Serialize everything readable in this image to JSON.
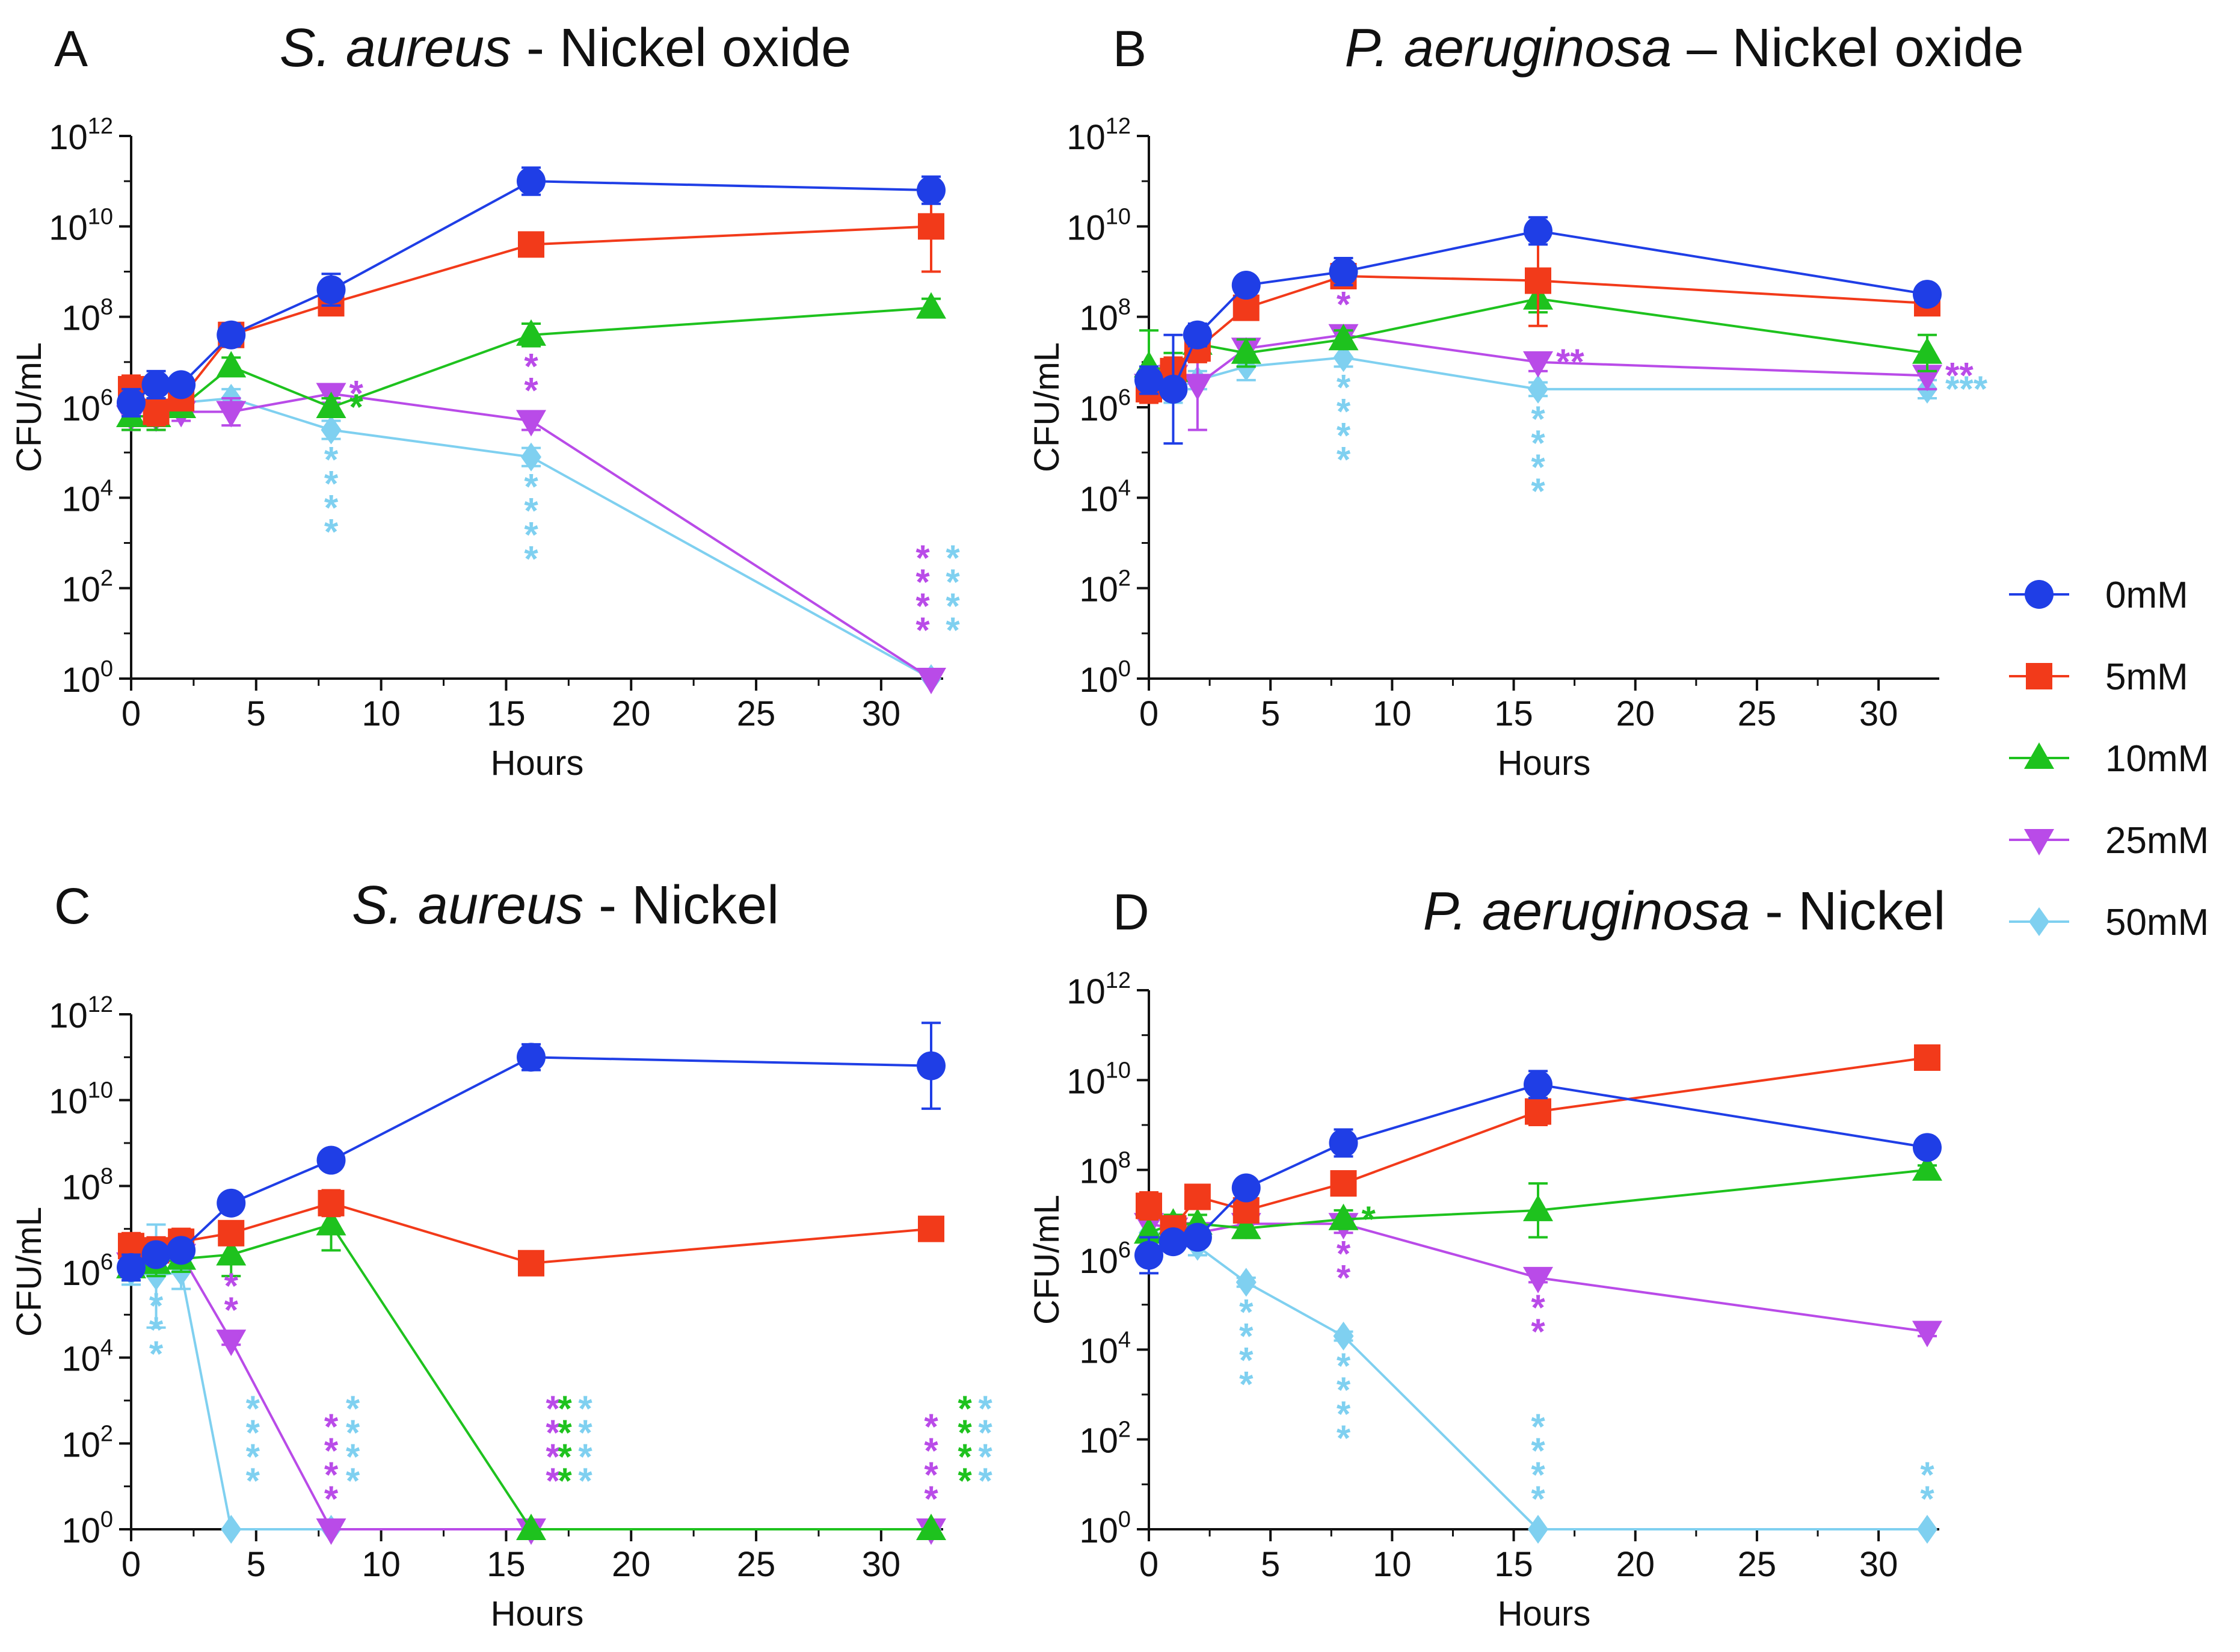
{
  "legend": [
    {
      "name": "0mM",
      "color": "#1f3ee6",
      "marker": "circle"
    },
    {
      "name": "5mM",
      "color": "#f23a1a",
      "marker": "square"
    },
    {
      "name": "10mM",
      "color": "#1ec21e",
      "marker": "triangle-up"
    },
    {
      "name": "25mM",
      "color": "#b94be8",
      "marker": "triangle-down"
    },
    {
      "name": "50mM",
      "color": "#7fd0f0",
      "marker": "diamond"
    }
  ],
  "chart_data": [
    {
      "type": "line",
      "panel": "A",
      "title": {
        "italic": "S. aureus",
        "rest": " - Nickel oxide"
      },
      "xlabel": "Hours",
      "ylabel": "CFU/mL",
      "yscale": "log",
      "xlim": [
        0,
        32
      ],
      "ylim_exponent": [
        0,
        12
      ],
      "xticks": [
        "0",
        "5",
        "10",
        "15",
        "20",
        "25",
        "30"
      ],
      "yticks": [
        {
          "base": "10",
          "exp": "0"
        },
        {
          "base": "10",
          "exp": "2"
        },
        {
          "base": "10",
          "exp": "4"
        },
        {
          "base": "10",
          "exp": "6"
        },
        {
          "base": "10",
          "exp": "8"
        },
        {
          "base": "10",
          "exp": "10"
        },
        {
          "base": "10",
          "exp": "12"
        }
      ],
      "x": [
        0,
        1,
        2,
        4,
        8,
        16,
        32
      ],
      "series": [
        {
          "name": "0mM",
          "log10": [
            6.1,
            6.5,
            6.5,
            7.6,
            8.6,
            11.0,
            10.8
          ],
          "err": [
            0.3,
            0.3,
            0.2,
            0.25,
            0.35,
            0.3,
            0.3
          ]
        },
        {
          "name": "5mM",
          "log10": [
            6.4,
            5.9,
            6.2,
            7.6,
            8.3,
            9.6,
            10.0
          ],
          "err": [
            0.3,
            0.3,
            0.2,
            0.25,
            0.2,
            0.25,
            1.0
          ]
        },
        {
          "name": "10mM",
          "log10": [
            5.8,
            5.8,
            6.0,
            6.9,
            6.0,
            7.6,
            8.2
          ],
          "err": [
            0.3,
            0.3,
            0.2,
            0.2,
            0.2,
            0.25,
            0.2
          ]
        },
        {
          "name": "25mM",
          "log10": [
            5.8,
            5.8,
            5.9,
            5.9,
            6.3,
            5.7,
            0.0
          ],
          "err": [
            0.3,
            0.3,
            0.2,
            0.3,
            0.2,
            0.2,
            0.0
          ]
        },
        {
          "name": "50mM",
          "log10": [
            5.9,
            6.0,
            6.1,
            6.2,
            5.5,
            4.9,
            0.0
          ],
          "err": [
            0.3,
            0.3,
            0.2,
            0.2,
            0.2,
            0.2,
            0.0
          ]
        }
      ],
      "significance": [
        {
          "series": "25mM",
          "x": 8,
          "text": "*",
          "dir": "right"
        },
        {
          "series": "10mM",
          "x": 8,
          "text": "*",
          "dir": "right"
        },
        {
          "series": "50mM",
          "x": 8,
          "text": "****",
          "dir": "down"
        },
        {
          "series": "25mM",
          "x": 16,
          "text": "**",
          "dir": "up"
        },
        {
          "series": "50mM",
          "x": 16,
          "text": "****",
          "dir": "down"
        },
        {
          "series": "25mM",
          "x": 32,
          "text": "****",
          "dir": "up-left"
        },
        {
          "series": "50mM",
          "x": 32,
          "text": "****",
          "dir": "up-right"
        }
      ]
    },
    {
      "type": "line",
      "panel": "B",
      "title": {
        "italic": "P. aeruginosa",
        "rest": " – Nickel oxide"
      },
      "xlabel": "Hours",
      "ylabel": "CFU/mL",
      "yscale": "log",
      "xlim": [
        0,
        32
      ],
      "ylim_exponent": [
        0,
        12
      ],
      "xticks": [
        "0",
        "5",
        "10",
        "15",
        "20",
        "25",
        "30"
      ],
      "yticks": [
        {
          "base": "10",
          "exp": "0"
        },
        {
          "base": "10",
          "exp": "2"
        },
        {
          "base": "10",
          "exp": "4"
        },
        {
          "base": "10",
          "exp": "6"
        },
        {
          "base": "10",
          "exp": "8"
        },
        {
          "base": "10",
          "exp": "10"
        },
        {
          "base": "10",
          "exp": "12"
        }
      ],
      "x": [
        0,
        1,
        2,
        4,
        8,
        16,
        32
      ],
      "series": [
        {
          "name": "0mM",
          "log10": [
            6.6,
            6.4,
            7.6,
            8.7,
            9.0,
            9.9,
            8.5
          ],
          "err": [
            0.3,
            1.2,
            0.25,
            0.15,
            0.3,
            0.3,
            0.2
          ]
        },
        {
          "name": "5mM",
          "log10": [
            6.4,
            6.8,
            7.3,
            8.2,
            8.9,
            8.8,
            8.3
          ],
          "err": [
            0.3,
            0.3,
            0.3,
            0.2,
            0.15,
            1.0,
            0.2
          ]
        },
        {
          "name": "10mM",
          "log10": [
            6.9,
            6.8,
            7.4,
            7.2,
            7.5,
            8.4,
            7.2
          ],
          "err": [
            0.8,
            0.4,
            0.3,
            0.3,
            0.2,
            0.3,
            0.4
          ]
        },
        {
          "name": "25mM",
          "log10": [
            6.5,
            6.7,
            6.5,
            7.3,
            7.6,
            7.0,
            6.7
          ],
          "err": [
            0.3,
            0.3,
            1.0,
            0.2,
            0.2,
            0.2,
            0.3
          ]
        },
        {
          "name": "50mM",
          "log10": [
            6.5,
            6.4,
            6.6,
            6.9,
            7.1,
            6.4,
            6.4
          ],
          "err": [
            0.2,
            0.3,
            0.2,
            0.3,
            0.2,
            0.15,
            0.2
          ]
        }
      ],
      "significance": [
        {
          "series": "25mM",
          "x": 8,
          "text": "*",
          "dir": "up"
        },
        {
          "series": "50mM",
          "x": 8,
          "text": "****",
          "dir": "down"
        },
        {
          "series": "25mM",
          "x": 16,
          "text": "**",
          "dir": "right"
        },
        {
          "series": "50mM",
          "x": 16,
          "text": "****",
          "dir": "down"
        },
        {
          "series": "25mM",
          "x": 32,
          "text": "**",
          "dir": "right"
        },
        {
          "series": "50mM",
          "x": 32,
          "text": "***",
          "dir": "right"
        }
      ]
    },
    {
      "type": "line",
      "panel": "C",
      "title": {
        "italic": "S. aureus",
        "rest": " - Nickel"
      },
      "xlabel": "Hours",
      "ylabel": "CFU/mL",
      "yscale": "log",
      "xlim": [
        0,
        32
      ],
      "ylim_exponent": [
        0,
        12
      ],
      "xticks": [
        "0",
        "5",
        "10",
        "15",
        "20",
        "25",
        "30"
      ],
      "yticks": [
        {
          "base": "10",
          "exp": "0"
        },
        {
          "base": "10",
          "exp": "2"
        },
        {
          "base": "10",
          "exp": "4"
        },
        {
          "base": "10",
          "exp": "6"
        },
        {
          "base": "10",
          "exp": "8"
        },
        {
          "base": "10",
          "exp": "10"
        },
        {
          "base": "10",
          "exp": "12"
        }
      ],
      "x": [
        0,
        1,
        2,
        4,
        8,
        16,
        32
      ],
      "series": [
        {
          "name": "0mM",
          "log10": [
            6.1,
            6.4,
            6.5,
            7.6,
            8.6,
            11.0,
            10.8
          ],
          "err": [
            0.3,
            0.2,
            0.2,
            0.2,
            0.2,
            0.3,
            1.0
          ]
        },
        {
          "name": "5mM",
          "log10": [
            6.6,
            6.5,
            6.7,
            6.9,
            7.6,
            6.2,
            7.0
          ],
          "err": [
            0.3,
            0.3,
            0.3,
            0.2,
            0.3,
            0.2,
            0.1
          ]
        },
        {
          "name": "10mM",
          "log10": [
            6.1,
            6.2,
            6.3,
            6.4,
            7.1,
            0.0,
            0.0
          ],
          "err": [
            0.3,
            0.3,
            0.3,
            0.5,
            0.6,
            0.0,
            0.0
          ]
        },
        {
          "name": "25mM",
          "log10": [
            6.2,
            6.5,
            6.4,
            4.4,
            0.0,
            0.0,
            0.0
          ],
          "err": [
            0.3,
            0.3,
            0.2,
            0.1,
            0.0,
            0.0,
            0.0
          ]
        },
        {
          "name": "50mM",
          "log10": [
            6.0,
            5.9,
            6.0,
            0.0,
            0.0,
            0.0,
            0.0
          ],
          "err": [
            0.3,
            1.2,
            0.4,
            0.0,
            0.0,
            0.0,
            0.0
          ]
        }
      ],
      "significance": [
        {
          "series": "50mM",
          "x": 1,
          "text": "***",
          "dir": "down"
        },
        {
          "series": "25mM",
          "x": 4,
          "text": "**",
          "dir": "up"
        },
        {
          "series": "50mM",
          "x": 4,
          "text": "****",
          "dir": "up-right"
        },
        {
          "series": "25mM",
          "x": 8,
          "text": "****",
          "dir": "up"
        },
        {
          "series": "50mM",
          "x": 8,
          "text": "****",
          "dir": "up-right"
        },
        {
          "series": "25mM",
          "x": 16,
          "text": "****",
          "dir": "up-right"
        },
        {
          "series": "10mM",
          "x": 16,
          "text": "****",
          "dir": "up-right2"
        },
        {
          "series": "50mM",
          "x": 16,
          "text": "****",
          "dir": "up-right3"
        },
        {
          "series": "25mM",
          "x": 32,
          "text": "****",
          "dir": "up"
        },
        {
          "series": "10mM",
          "x": 32,
          "text": "****",
          "dir": "up-right2"
        },
        {
          "series": "50mM",
          "x": 32,
          "text": "****",
          "dir": "up-right3"
        }
      ]
    },
    {
      "type": "line",
      "panel": "D",
      "title": {
        "italic": "P. aeruginosa",
        "rest": " - Nickel"
      },
      "xlabel": "Hours",
      "ylabel": "CFU/mL",
      "yscale": "log",
      "xlim": [
        0,
        32
      ],
      "ylim_exponent": [
        0,
        12
      ],
      "xticks": [
        "0",
        "5",
        "10",
        "15",
        "20",
        "25",
        "30"
      ],
      "yticks": [
        {
          "base": "10",
          "exp": "0"
        },
        {
          "base": "10",
          "exp": "2"
        },
        {
          "base": "10",
          "exp": "4"
        },
        {
          "base": "10",
          "exp": "6"
        },
        {
          "base": "10",
          "exp": "8"
        },
        {
          "base": "10",
          "exp": "10"
        },
        {
          "base": "10",
          "exp": "12"
        }
      ],
      "x": [
        0,
        1,
        2,
        4,
        8,
        16,
        32
      ],
      "series": [
        {
          "name": "0mM",
          "log10": [
            6.1,
            6.4,
            6.5,
            7.6,
            8.6,
            9.9,
            8.5
          ],
          "err": [
            0.4,
            0.2,
            0.2,
            0.2,
            0.3,
            0.3,
            0.1
          ]
        },
        {
          "name": "5mM",
          "log10": [
            7.2,
            6.7,
            7.4,
            7.1,
            7.7,
            9.3,
            10.5
          ],
          "err": [
            0.3,
            0.2,
            0.2,
            0.2,
            0.2,
            0.3,
            0.2
          ]
        },
        {
          "name": "10mM",
          "log10": [
            6.6,
            6.8,
            6.8,
            6.7,
            6.9,
            7.1,
            8.0
          ],
          "err": [
            0.3,
            0.2,
            0.2,
            0.2,
            0.2,
            0.6,
            0.1
          ]
        },
        {
          "name": "25mM",
          "log10": [
            6.8,
            6.7,
            6.6,
            6.8,
            6.8,
            5.6,
            4.4
          ],
          "err": [
            0.3,
            0.2,
            0.2,
            0.2,
            0.2,
            0.1,
            0.1
          ]
        },
        {
          "name": "50mM",
          "log10": [
            6.6,
            6.5,
            6.3,
            5.5,
            4.3,
            0.0,
            0.0
          ],
          "err": [
            0.3,
            0.2,
            0.2,
            0.1,
            0.1,
            0.0,
            0.0
          ]
        }
      ],
      "significance": [
        {
          "series": "10mM",
          "x": 8,
          "text": "*",
          "dir": "right"
        },
        {
          "series": "25mM",
          "x": 8,
          "text": "**",
          "dir": "down"
        },
        {
          "series": "50mM",
          "x": 4,
          "text": "****",
          "dir": "down"
        },
        {
          "series": "50mM",
          "x": 8,
          "text": "****",
          "dir": "down"
        },
        {
          "series": "25mM",
          "x": 16,
          "text": "**",
          "dir": "down"
        },
        {
          "series": "50mM",
          "x": 16,
          "text": "****",
          "dir": "up"
        },
        {
          "series": "50mM",
          "x": 32,
          "text": "**",
          "dir": "up"
        }
      ]
    }
  ]
}
